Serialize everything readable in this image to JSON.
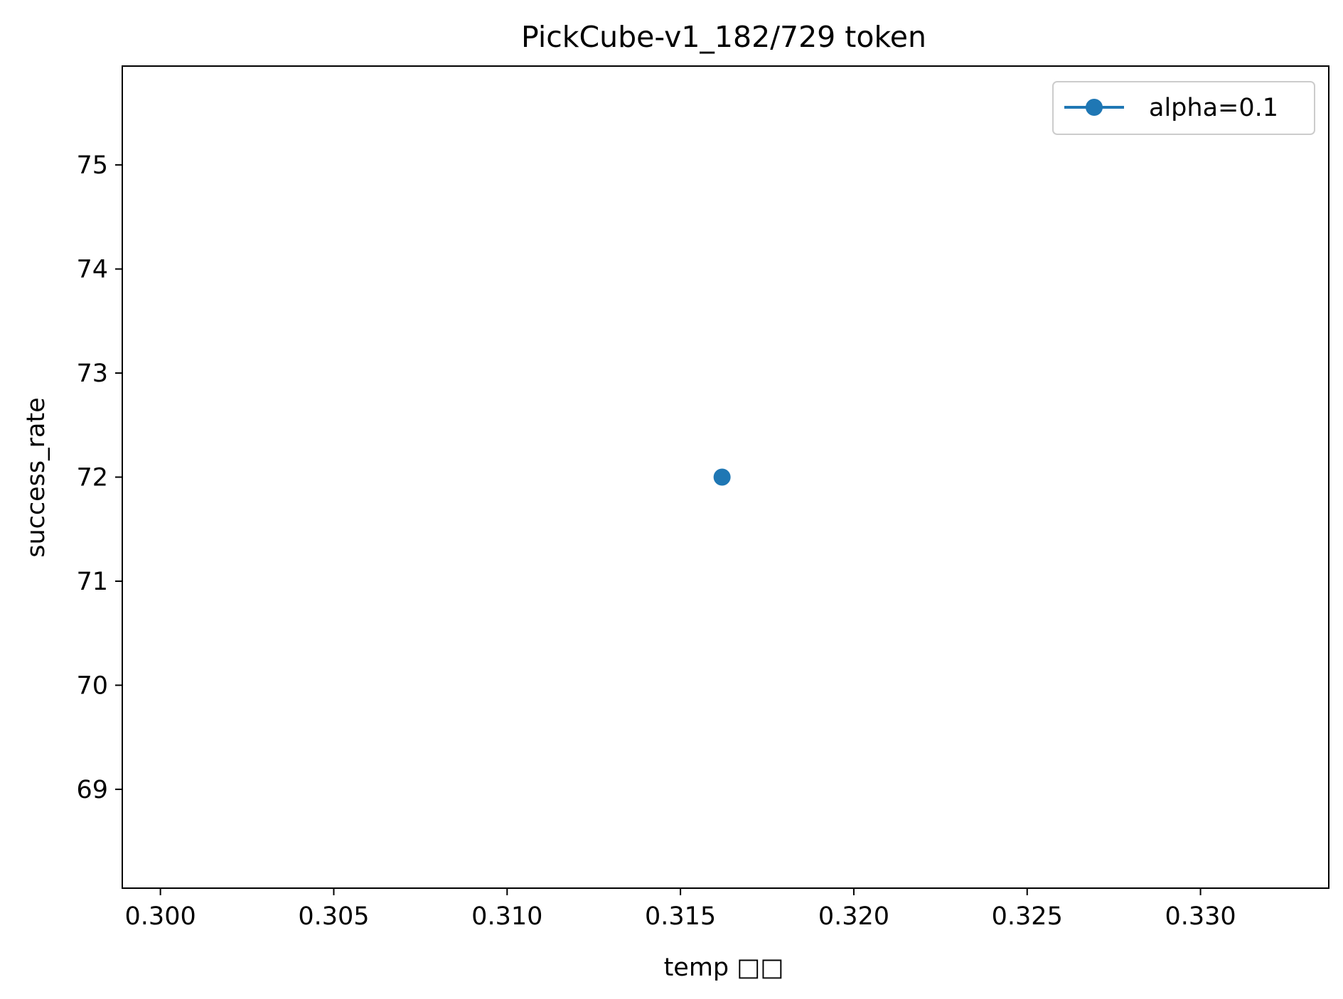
{
  "chart_data": {
    "type": "line",
    "title": "PickCube-v1_182/729 token",
    "xlabel": "temp □□",
    "ylabel": "success_rate",
    "xlim": [
      0.2989,
      0.3337
    ],
    "ylim": [
      68.05,
      75.95
    ],
    "xticks": [
      0.3,
      0.305,
      0.31,
      0.315,
      0.32,
      0.325,
      0.33
    ],
    "xtick_labels": [
      "0.300",
      "0.305",
      "0.310",
      "0.315",
      "0.320",
      "0.325",
      "0.330"
    ],
    "yticks": [
      69,
      70,
      71,
      72,
      73,
      74,
      75
    ],
    "ytick_labels": [
      "69",
      "70",
      "71",
      "72",
      "73",
      "74",
      "75"
    ],
    "grid": false,
    "legend_position": "top-right",
    "series": [
      {
        "name": "alpha=0.1",
        "color": "#1f77b4",
        "marker": "circle",
        "x": [
          0.3162
        ],
        "y": [
          72
        ]
      }
    ]
  }
}
